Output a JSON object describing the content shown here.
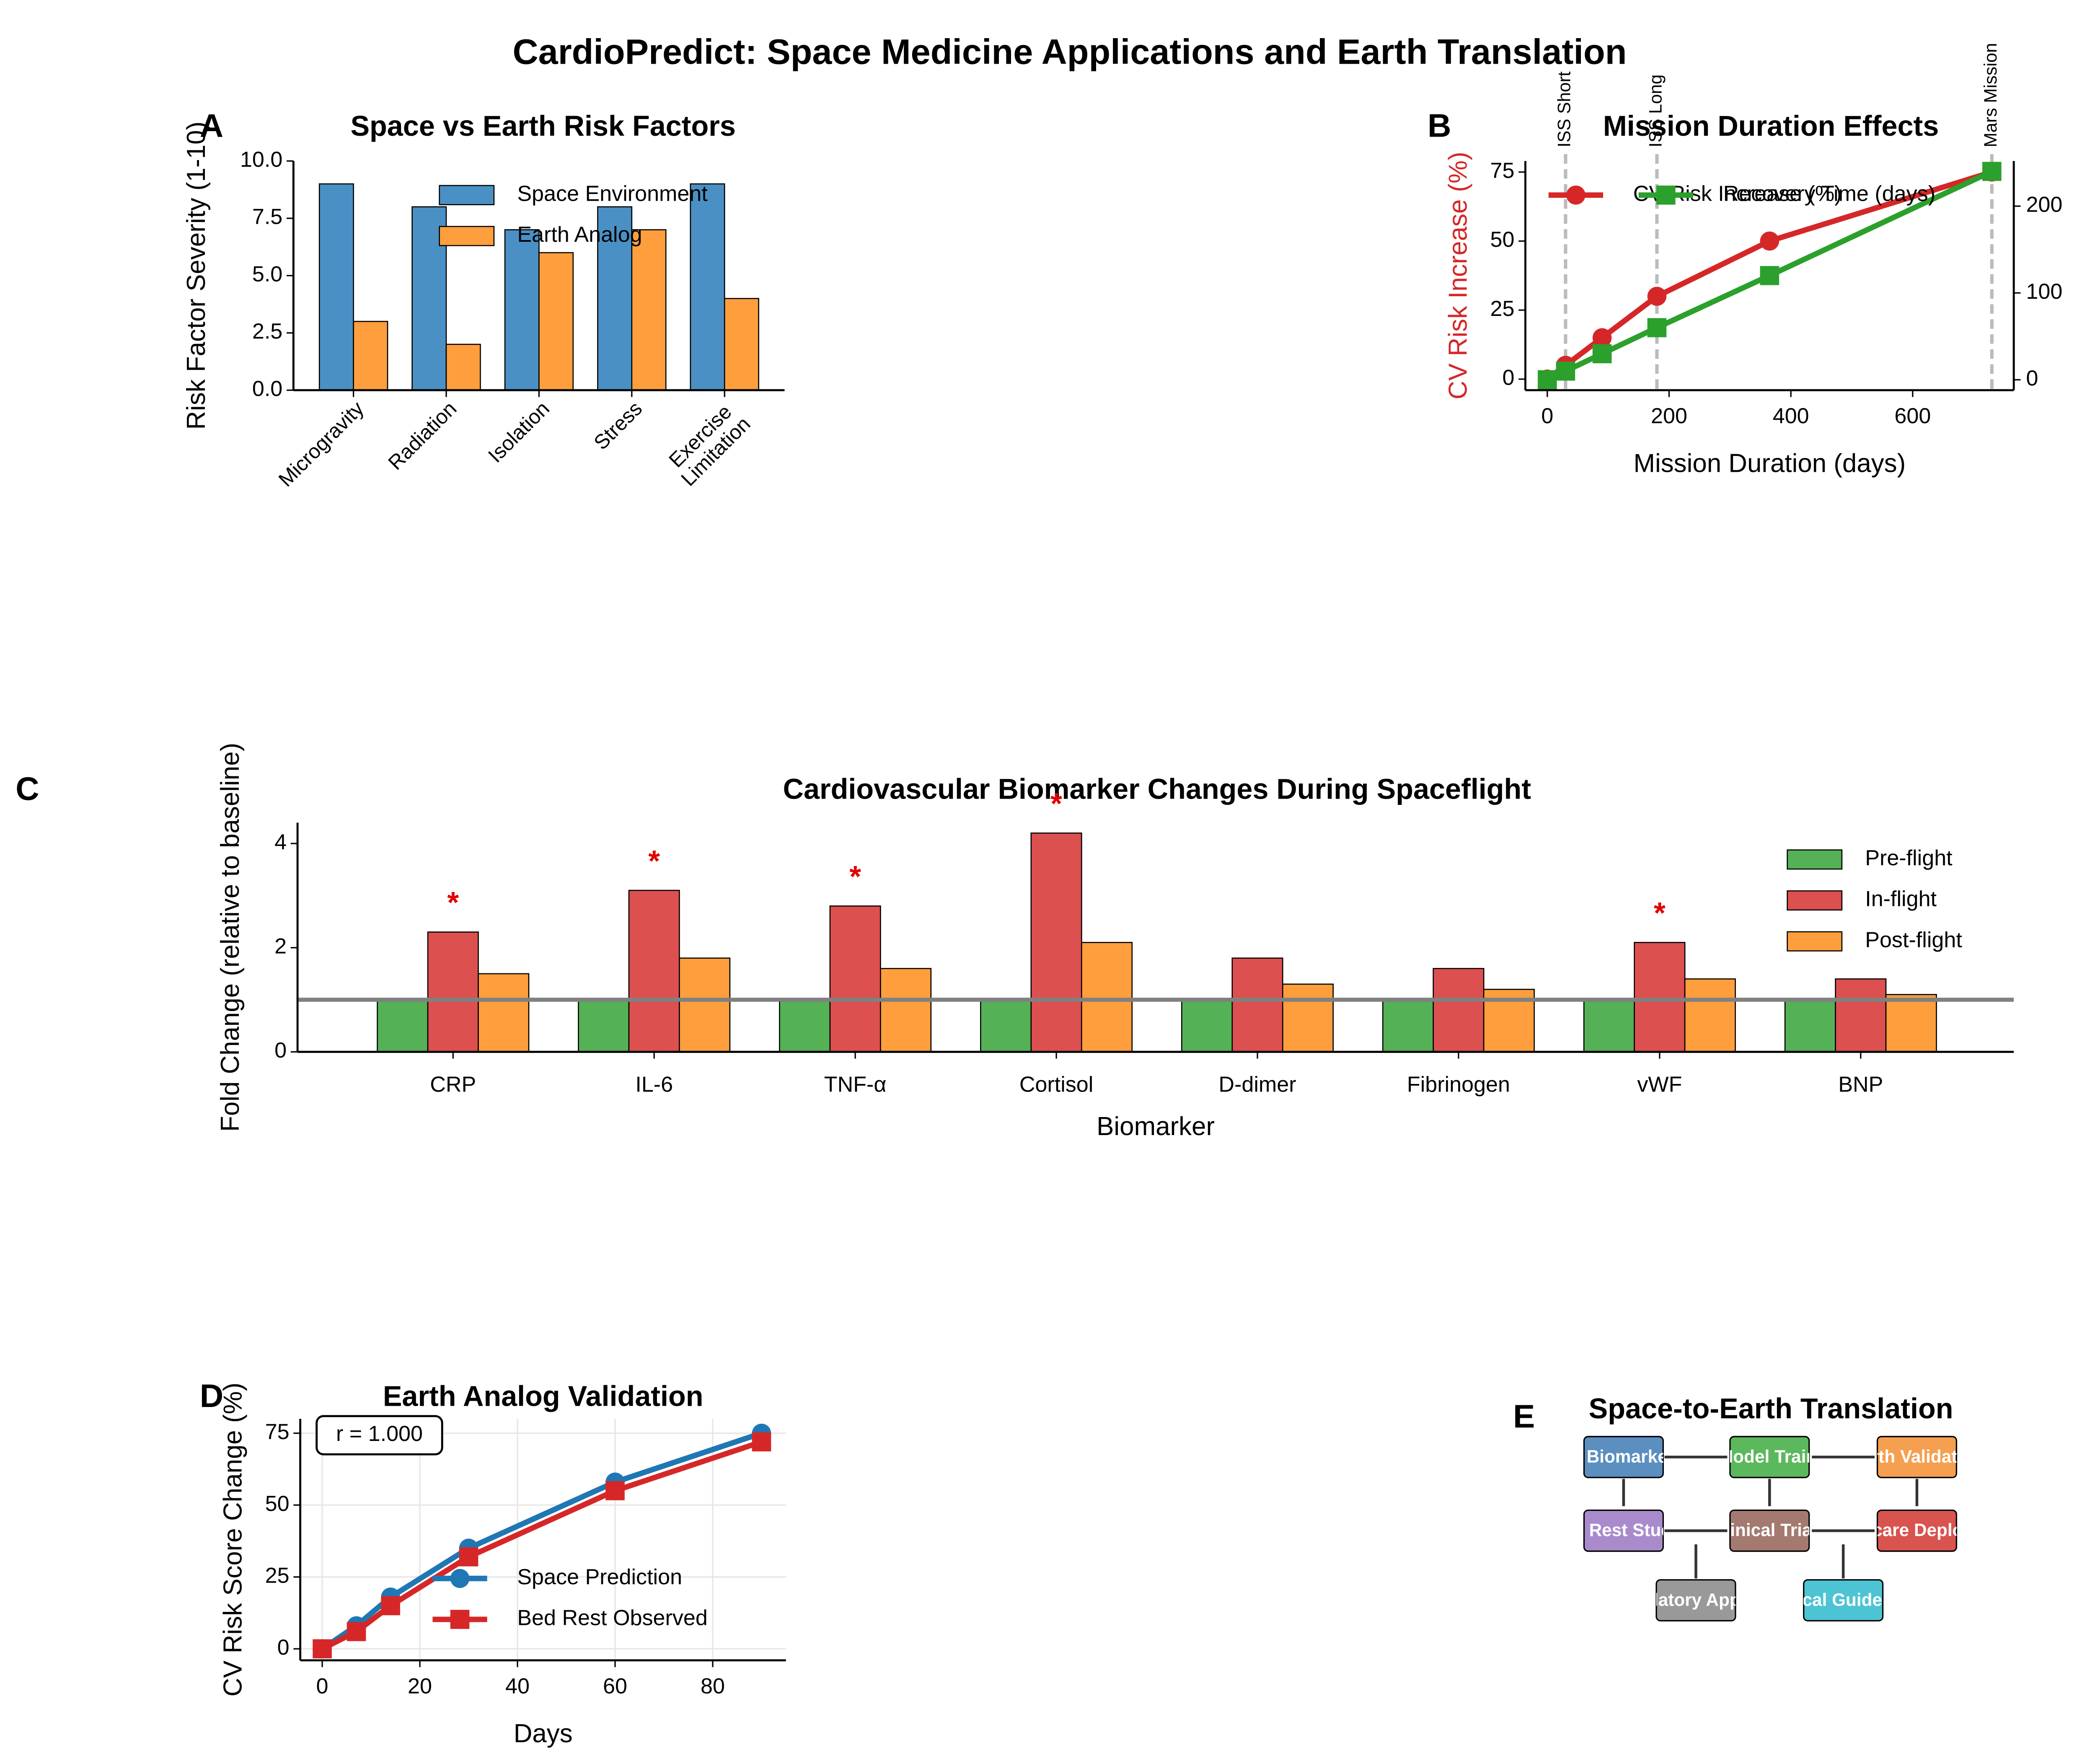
{
  "title": "CardioPredict: Space Medicine Applications and Earth Translation",
  "chart_data": [
    {
      "type": "bar",
      "panel": "A",
      "title": "Space vs Earth Risk Factors",
      "y_label": "Risk Factor Severity (1-10)",
      "categories": [
        "Microgravity",
        "Radiation",
        "Isolation",
        "Stress",
        "Exercise\nLimitation"
      ],
      "series": [
        {
          "name": "Space Environment",
          "color": "#4a90c4",
          "values": [
            9,
            8,
            7,
            8,
            9
          ]
        },
        {
          "name": "Earth Analog",
          "color": "#ff9e3d",
          "values": [
            3,
            2,
            6,
            7,
            4
          ]
        }
      ],
      "ylim": [
        0,
        10
      ],
      "yticks": [
        {
          "value": 0,
          "label": "0.0"
        },
        {
          "value": 2.5,
          "label": "2.5"
        },
        {
          "value": 5,
          "label": "5.0"
        },
        {
          "value": 7.5,
          "label": "7.5"
        },
        {
          "value": 10,
          "label": "10.0"
        }
      ]
    },
    {
      "type": "line",
      "panel": "B",
      "title": "Mission Duration Effects",
      "x_label": "Mission Duration (days)",
      "y_label": "CV Risk Increase (%)",
      "y2_label": "Recovery Time (days)",
      "x": [
        0,
        30,
        90,
        180,
        365,
        730
      ],
      "series": [
        {
          "name": "CV Risk Increase (%)",
          "color": "#d62728",
          "marker": "circle",
          "values": [
            0,
            5,
            15,
            30,
            50,
            75
          ]
        },
        {
          "name": "Recovery Time (days)",
          "color": "#2ca02c",
          "marker": "square",
          "axis": "y2",
          "values": [
            0,
            10,
            30,
            60,
            120,
            240
          ]
        }
      ],
      "xlim": [
        -36,
        766
      ],
      "xticks": [
        0,
        200,
        400,
        600
      ],
      "ylim": [
        -4,
        79
      ],
      "yticks": [
        0,
        25,
        50,
        75
      ],
      "y2lim": [
        -12,
        252
      ],
      "y2ticks": [
        0,
        100,
        200
      ],
      "vlines": [
        {
          "x": 30,
          "label": "ISS Short"
        },
        {
          "x": 180,
          "label": "ISS Long"
        },
        {
          "x": 730,
          "label": "Mars Mission"
        }
      ]
    },
    {
      "type": "bar",
      "panel": "C",
      "title": "Cardiovascular Biomarker Changes During Spaceflight",
      "x_label": "Biomarker",
      "y_label": "Fold Change (relative to baseline)",
      "categories": [
        "CRP",
        "IL-6",
        "TNF-α",
        "Cortisol",
        "D-dimer",
        "Fibrinogen",
        "vWF",
        "BNP"
      ],
      "series": [
        {
          "name": "Pre-flight",
          "color": "#55b155",
          "values": [
            1,
            1,
            1,
            1,
            1,
            1,
            1,
            1
          ]
        },
        {
          "name": "In-flight",
          "color": "#dc5050",
          "values": [
            2.3,
            3.1,
            2.8,
            4.2,
            1.8,
            1.6,
            2.1,
            1.4
          ]
        },
        {
          "name": "Post-flight",
          "color": "#ff9e3d",
          "values": [
            1.5,
            1.8,
            1.6,
            2.1,
            1.3,
            1.2,
            1.4,
            1.1
          ]
        }
      ],
      "significance": [
        "*",
        "*",
        "*",
        "*",
        null,
        null,
        "*",
        null
      ],
      "hline": 1,
      "ylim": [
        0,
        4.4
      ],
      "yticks": [
        0,
        2,
        4
      ]
    },
    {
      "type": "line",
      "panel": "D",
      "title": "Earth Analog Validation",
      "x_label": "Days",
      "y_label": "CV Risk Score Change (%)",
      "x": [
        0,
        7,
        14,
        30,
        60,
        90
      ],
      "series": [
        {
          "name": "Space Prediction",
          "color": "#1f77b4",
          "marker": "circle",
          "values": [
            0,
            8,
            18,
            35,
            58,
            75
          ]
        },
        {
          "name": "Bed Rest Observed",
          "color": "#d62728",
          "marker": "square",
          "values": [
            0,
            6,
            15,
            32,
            55,
            72
          ]
        }
      ],
      "annotation": "r = 1.000",
      "grid": true,
      "xlim": [
        -4.5,
        95
      ],
      "xticks": [
        0,
        20,
        40,
        60,
        80
      ],
      "ylim": [
        -4,
        80
      ],
      "yticks": [
        0,
        25,
        50,
        75
      ]
    }
  ],
  "diagram": {
    "panel": "E",
    "title": "Space-to-Earth Translation",
    "nodes": [
      {
        "label": "Space Biomarker Data",
        "color": "#5a8fc0"
      },
      {
        "label": "AI Model Training",
        "color": "#5cb85c"
      },
      {
        "label": "Earth Validation",
        "color": "#f5a050"
      },
      {
        "label": "Bed Rest Studies",
        "color": "#a98bcc"
      },
      {
        "label": "Clinical Trials",
        "color": "#a47a70"
      },
      {
        "label": "Healthcare Deployment",
        "color": "#d9534f"
      },
      {
        "label": "Regulatory Approval",
        "color": "#999999"
      },
      {
        "label": "Clinical Guidelines",
        "color": "#4cc4d4"
      }
    ]
  }
}
